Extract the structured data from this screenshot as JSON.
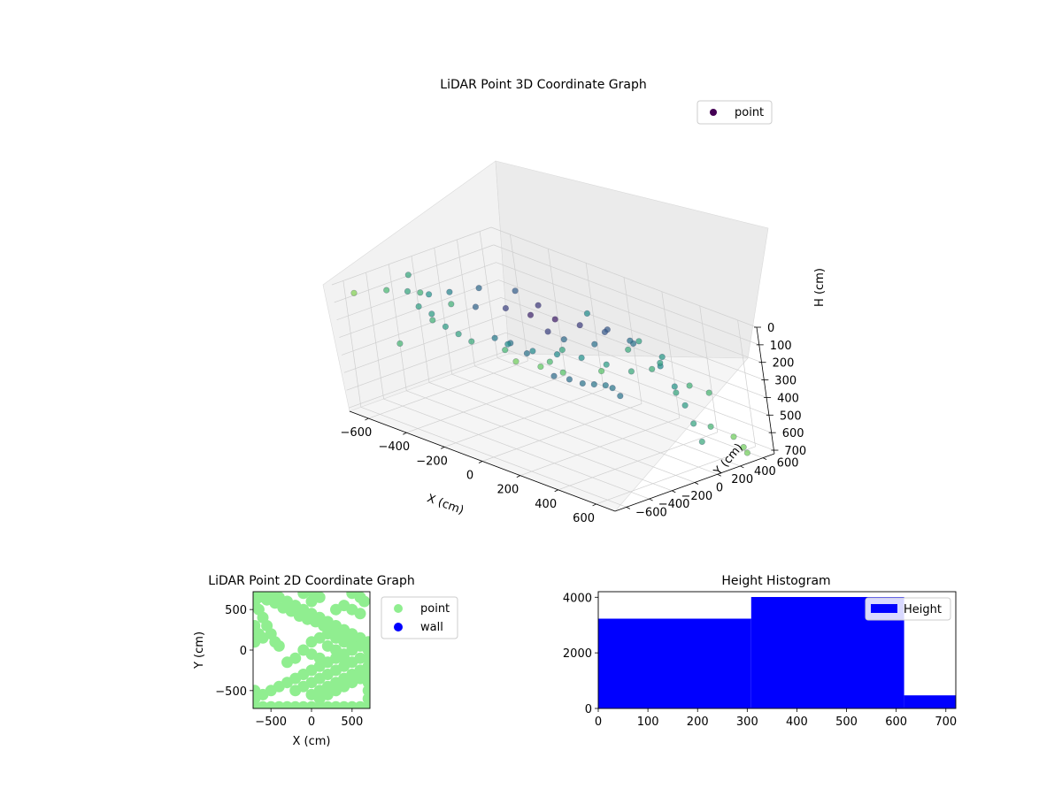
{
  "chart_data": [
    {
      "type": "scatter",
      "title": "LiDAR Point 3D Coordinate Graph",
      "xlabel": "X (cm)",
      "ylabel": "Y (cm)",
      "zlabel": "H (cm)",
      "xlim": [
        -700,
        700
      ],
      "ylim": [
        -700,
        700
      ],
      "zlim": [
        0,
        720
      ],
      "xticks": [
        -600,
        -400,
        -200,
        0,
        200,
        400,
        600
      ],
      "yticks": [
        -600,
        -400,
        -200,
        0,
        200,
        400,
        600
      ],
      "zticks": [
        0,
        100,
        200,
        300,
        400,
        500,
        600,
        700
      ],
      "z_inverted": true,
      "colormap": "viridis",
      "grid": true,
      "legend": {
        "position": "top-right",
        "entries": [
          {
            "label": "point",
            "color": "#440154"
          }
        ]
      },
      "series": [
        {
          "name": "point",
          "points": [
            [
              -150,
              -100,
              50
            ],
            [
              -50,
              -50,
              60
            ],
            [
              50,
              0,
              55
            ],
            [
              150,
              50,
              60
            ],
            [
              250,
              100,
              70
            ],
            [
              350,
              150,
              90
            ],
            [
              -250,
              -200,
              60
            ],
            [
              -100,
              100,
              60
            ],
            [
              100,
              -150,
              70
            ],
            [
              200,
              200,
              100
            ],
            [
              300,
              250,
              150
            ],
            [
              400,
              300,
              250
            ],
            [
              450,
              320,
              350
            ],
            [
              480,
              340,
              450
            ],
            [
              500,
              360,
              550
            ],
            [
              520,
              380,
              650
            ],
            [
              -200,
              300,
              550
            ],
            [
              -150,
              350,
              560
            ],
            [
              -100,
              380,
              570
            ],
            [
              -50,
              400,
              560
            ],
            [
              0,
              420,
              550
            ],
            [
              50,
              400,
              540
            ],
            [
              100,
              380,
              560
            ],
            [
              -300,
              250,
              450
            ],
            [
              -350,
              200,
              400
            ],
            [
              -400,
              150,
              380
            ],
            [
              -450,
              -100,
              80
            ],
            [
              -500,
              -200,
              90
            ],
            [
              -550,
              -300,
              70
            ],
            [
              -600,
              -400,
              60
            ],
            [
              -650,
              -600,
              50
            ],
            [
              -400,
              -450,
              60
            ],
            [
              -300,
              -500,
              50
            ],
            [
              -200,
              -550,
              70
            ],
            [
              -100,
              -600,
              60
            ],
            [
              0,
              -650,
              50
            ],
            [
              100,
              -500,
              60
            ],
            [
              200,
              -450,
              70
            ],
            [
              300,
              -400,
              60
            ],
            [
              400,
              -350,
              50
            ],
            [
              500,
              -300,
              60
            ],
            [
              600,
              -250,
              70
            ],
            [
              650,
              -150,
              60
            ],
            [
              600,
              0,
              80
            ],
            [
              550,
              100,
              90
            ],
            [
              -600,
              600,
              700
            ],
            [
              -500,
              650,
              700
            ],
            [
              -400,
              680,
              700
            ],
            [
              600,
              600,
              700
            ],
            [
              650,
              550,
              700
            ],
            [
              500,
              680,
              700
            ],
            [
              -650,
              200,
              300
            ],
            [
              -680,
              0,
              200
            ],
            [
              650,
              300,
              300
            ],
            [
              680,
              100,
              200
            ],
            [
              0,
              650,
              400
            ],
            [
              -300,
              550,
              500
            ],
            [
              300,
              550,
              500
            ],
            [
              -600,
              -200,
              20
            ],
            [
              600,
              -500,
              10
            ],
            [
              -200,
              -650,
              10
            ],
            [
              200,
              -680,
              10
            ],
            [
              400,
              -620,
              10
            ],
            [
              -500,
              -500,
              300
            ],
            [
              500,
              500,
              600
            ],
            [
              -100,
              500,
              200
            ],
            [
              100,
              600,
              300
            ],
            [
              350,
              -150,
              40
            ],
            [
              -350,
              0,
              40
            ],
            [
              250,
              -250,
              30
            ],
            [
              -250,
              150,
              50
            ]
          ]
        }
      ]
    },
    {
      "type": "scatter",
      "title": "LiDAR Point 2D Coordinate Graph",
      "xlabel": "X (cm)",
      "ylabel": "Y (cm)",
      "xlim": [
        -720,
        720
      ],
      "ylim": [
        -720,
        720
      ],
      "xticks": [
        -500,
        0,
        500
      ],
      "yticks": [
        -500,
        0,
        500
      ],
      "grid": false,
      "legend": {
        "position": "right",
        "entries": [
          {
            "label": "point",
            "color": "#90ee90"
          },
          {
            "label": "wall",
            "color": "#0000ff"
          }
        ]
      },
      "series": [
        {
          "name": "point",
          "color": "#90ee90",
          "points": [
            [
              -700,
              700
            ],
            [
              -600,
              720
            ],
            [
              -500,
              700
            ],
            [
              -400,
              650
            ],
            [
              -300,
              600
            ],
            [
              -200,
              550
            ],
            [
              -100,
              500
            ],
            [
              0,
              450
            ],
            [
              100,
              400
            ],
            [
              200,
              350
            ],
            [
              300,
              300
            ],
            [
              400,
              250
            ],
            [
              500,
              200
            ],
            [
              600,
              150
            ],
            [
              700,
              100
            ],
            [
              -700,
              600
            ],
            [
              -650,
              500
            ],
            [
              -600,
              400
            ],
            [
              -550,
              300
            ],
            [
              -500,
              200
            ],
            [
              -450,
              100
            ],
            [
              -400,
              50
            ],
            [
              -700,
              300
            ],
            [
              -700,
              100
            ],
            [
              -650,
              650
            ],
            [
              -550,
              620
            ],
            [
              -450,
              580
            ],
            [
              -350,
              520
            ],
            [
              -250,
              480
            ],
            [
              -150,
              420
            ],
            [
              -50,
              380
            ],
            [
              50,
              350
            ],
            [
              150,
              300
            ],
            [
              250,
              250
            ],
            [
              350,
              200
            ],
            [
              450,
              150
            ],
            [
              550,
              100
            ],
            [
              650,
              50
            ],
            [
              700,
              0
            ],
            [
              700,
              -100
            ],
            [
              700,
              -200
            ],
            [
              700,
              -300
            ],
            [
              700,
              -400
            ],
            [
              700,
              -500
            ],
            [
              700,
              -600
            ],
            [
              700,
              -700
            ],
            [
              600,
              -700
            ],
            [
              500,
              -700
            ],
            [
              400,
              -700
            ],
            [
              300,
              -700
            ],
            [
              200,
              -700
            ],
            [
              100,
              -700
            ],
            [
              0,
              -700
            ],
            [
              -100,
              -700
            ],
            [
              -200,
              -700
            ],
            [
              -300,
              -700
            ],
            [
              -400,
              -700
            ],
            [
              -500,
              -700
            ],
            [
              -600,
              -700
            ],
            [
              -700,
              -700
            ],
            [
              -700,
              -600
            ],
            [
              -700,
              -500
            ],
            [
              -600,
              -550
            ],
            [
              -500,
              -500
            ],
            [
              -400,
              -450
            ],
            [
              -300,
              -400
            ],
            [
              -200,
              -350
            ],
            [
              -100,
              -300
            ],
            [
              0,
              -250
            ],
            [
              100,
              -200
            ],
            [
              200,
              -150
            ],
            [
              300,
              -100
            ],
            [
              400,
              -50
            ],
            [
              500,
              0
            ],
            [
              600,
              50
            ],
            [
              -200,
              -500
            ],
            [
              -100,
              -450
            ],
            [
              0,
              -400
            ],
            [
              100,
              -350
            ],
            [
              200,
              -300
            ],
            [
              300,
              -250
            ],
            [
              400,
              -200
            ],
            [
              500,
              -150
            ],
            [
              600,
              -100
            ],
            [
              0,
              -550
            ],
            [
              100,
              -500
            ],
            [
              200,
              -450
            ],
            [
              300,
              -400
            ],
            [
              400,
              -350
            ],
            [
              500,
              -300
            ],
            [
              600,
              -250
            ],
            [
              100,
              -600
            ],
            [
              200,
              -550
            ],
            [
              300,
              -500
            ],
            [
              400,
              -450
            ],
            [
              500,
              -400
            ],
            [
              600,
              -350
            ],
            [
              0,
              100
            ],
            [
              100,
              150
            ],
            [
              200,
              200
            ],
            [
              300,
              150
            ],
            [
              400,
              100
            ],
            [
              500,
              50
            ],
            [
              200,
              50
            ],
            [
              300,
              0
            ],
            [
              400,
              -100
            ],
            [
              -100,
              0
            ],
            [
              0,
              -50
            ],
            [
              100,
              -100
            ],
            [
              -300,
              -150
            ],
            [
              -200,
              -100
            ],
            [
              0,
              600
            ],
            [
              100,
              650
            ],
            [
              300,
              500
            ],
            [
              400,
              550
            ],
            [
              500,
              500
            ],
            [
              600,
              450
            ],
            [
              650,
              600
            ],
            [
              600,
              650
            ],
            [
              500,
              700
            ],
            [
              -100,
              700
            ],
            [
              0,
              720
            ],
            [
              -650,
              200
            ],
            [
              -600,
              150
            ]
          ]
        },
        {
          "name": "wall",
          "color": "#0000ff",
          "points": []
        }
      ]
    },
    {
      "type": "bar",
      "title": "Height Histogram",
      "xlabel": "",
      "ylabel": "",
      "xlim": [
        0,
        720
      ],
      "ylim": [
        0,
        4200
      ],
      "xticks": [
        0,
        100,
        200,
        300,
        400,
        500,
        600,
        700
      ],
      "yticks": [
        0,
        2000,
        4000
      ],
      "grid": false,
      "bar_color": "#0000ff",
      "legend": {
        "position": "top-right",
        "entries": [
          {
            "label": "Height",
            "color": "#0000ff"
          }
        ]
      },
      "bins": [
        {
          "start": 0,
          "end": 308,
          "count": 3230
        },
        {
          "start": 308,
          "end": 616,
          "count": 4010
        },
        {
          "start": 616,
          "end": 720,
          "count": 470
        }
      ]
    }
  ]
}
